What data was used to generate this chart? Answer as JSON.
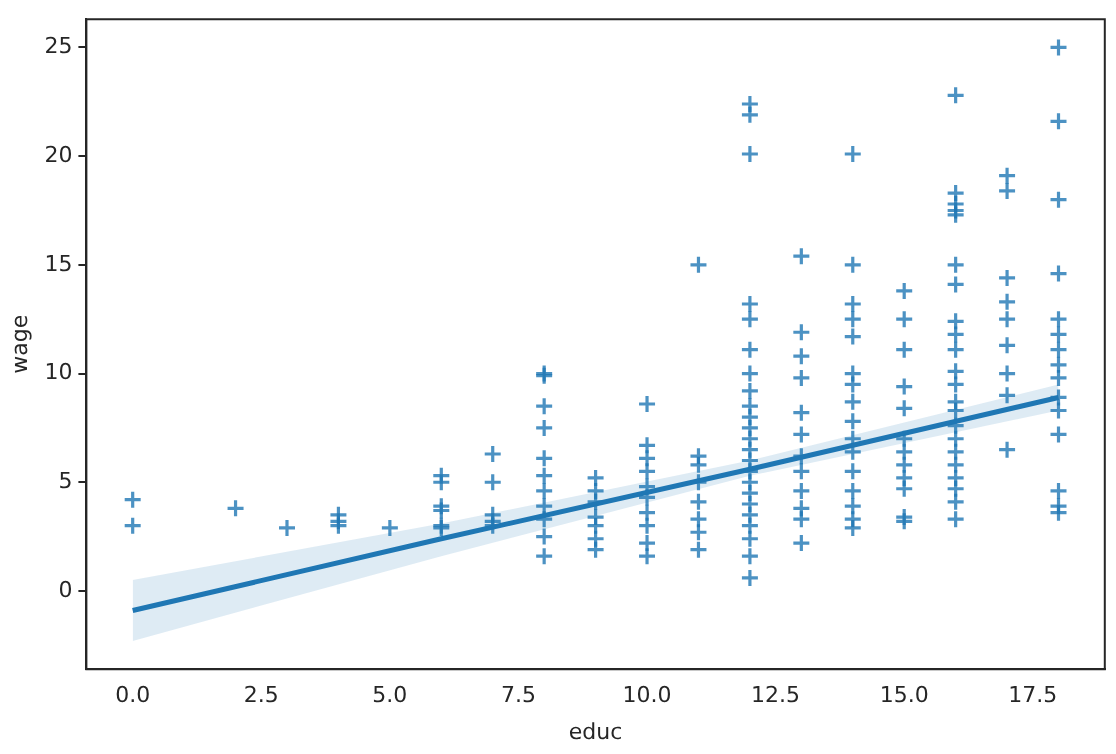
{
  "chart_data": {
    "type": "scatter",
    "xlabel": "educ",
    "ylabel": "wage",
    "xlim": [
      -0.9,
      18.9
    ],
    "ylim": [
      -3.6,
      26.3
    ],
    "xticks": [
      {
        "value": 0,
        "label": "0.0"
      },
      {
        "value": 2.5,
        "label": "2.5"
      },
      {
        "value": 5,
        "label": "5.0"
      },
      {
        "value": 7.5,
        "label": "7.5"
      },
      {
        "value": 10,
        "label": "10.0"
      },
      {
        "value": 12.5,
        "label": "12.5"
      },
      {
        "value": 15,
        "label": "15.0"
      },
      {
        "value": 17.5,
        "label": "17.5"
      }
    ],
    "yticks": [
      0,
      5,
      10,
      15,
      20,
      25
    ],
    "grid": false,
    "legend": false,
    "series": [
      {
        "marker": "cross",
        "color": "#1f77b4",
        "x": [
          0,
          0,
          2,
          3,
          4,
          4,
          4,
          5,
          6,
          6,
          6,
          6,
          6,
          6,
          7,
          7,
          7,
          7,
          7,
          8,
          8,
          8,
          8,
          8,
          8,
          8,
          8,
          8,
          8,
          8,
          9,
          9,
          9,
          9,
          9,
          9,
          9,
          10,
          10,
          10,
          10,
          10,
          10,
          10,
          10,
          10,
          10,
          11,
          11,
          11,
          11,
          11,
          11,
          11,
          11,
          12,
          12,
          12,
          12,
          12,
          12,
          12,
          12,
          12,
          12,
          12,
          12,
          12,
          12,
          12,
          12,
          12,
          12,
          12,
          12,
          12,
          12,
          12,
          13,
          13,
          13,
          13,
          13,
          13,
          13,
          13,
          13,
          13,
          13,
          13,
          14,
          14,
          14,
          14,
          14,
          14,
          14,
          14,
          14,
          14,
          14,
          14,
          14,
          14,
          14,
          14,
          15,
          15,
          15,
          15,
          15,
          15,
          15,
          15,
          15,
          15,
          15,
          15,
          16,
          16,
          16,
          16,
          16,
          16,
          16,
          16,
          16,
          16,
          16,
          16,
          16,
          16,
          16,
          16,
          16,
          16,
          16,
          16,
          16,
          16,
          17,
          17,
          17,
          17,
          17,
          17,
          17,
          17,
          17,
          18,
          18,
          18,
          18,
          18,
          18,
          18,
          18,
          18,
          18,
          18,
          18,
          18,
          18,
          18
        ],
        "values": [
          4.2,
          3.0,
          3.8,
          2.9,
          3.5,
          3.2,
          3.0,
          2.9,
          5.3,
          5.0,
          3.9,
          3.7,
          3.0,
          2.9,
          6.3,
          5.0,
          3.5,
          3.2,
          3.0,
          10.0,
          9.9,
          8.5,
          7.5,
          6.1,
          5.3,
          4.6,
          3.9,
          3.3,
          2.5,
          1.6,
          5.2,
          4.6,
          4.1,
          3.4,
          3.0,
          2.4,
          1.9,
          8.6,
          6.7,
          6.1,
          5.5,
          4.8,
          4.3,
          3.6,
          3.0,
          2.2,
          1.6,
          15.0,
          6.2,
          5.8,
          5.0,
          4.1,
          3.3,
          2.7,
          1.9,
          22.4,
          21.9,
          20.1,
          13.2,
          12.5,
          11.1,
          10.0,
          9.2,
          8.5,
          8.0,
          7.5,
          7.0,
          6.5,
          6.0,
          5.5,
          5.0,
          4.5,
          4.0,
          3.5,
          3.0,
          2.4,
          1.6,
          0.6,
          15.4,
          11.9,
          10.8,
          9.8,
          8.2,
          7.2,
          6.2,
          5.5,
          4.6,
          3.8,
          3.3,
          2.2,
          20.1,
          15.0,
          13.2,
          12.5,
          11.7,
          10.0,
          9.5,
          8.7,
          7.8,
          7.0,
          6.4,
          5.5,
          4.6,
          3.9,
          3.3,
          2.9,
          13.8,
          12.5,
          11.1,
          9.4,
          8.4,
          7.0,
          6.4,
          5.8,
          5.2,
          4.7,
          3.4,
          3.2,
          22.8,
          18.3,
          17.8,
          17.5,
          17.3,
          15.0,
          14.1,
          12.4,
          11.8,
          11.1,
          10.1,
          9.5,
          8.7,
          8.3,
          7.6,
          7.0,
          6.4,
          5.8,
          5.2,
          4.7,
          4.1,
          3.3,
          19.1,
          18.4,
          14.4,
          13.3,
          12.5,
          11.3,
          10.0,
          9.0,
          6.5,
          25.0,
          21.6,
          18.0,
          14.6,
          12.5,
          11.8,
          11.1,
          10.4,
          9.8,
          8.9,
          8.3,
          7.2,
          4.6,
          3.9,
          3.6
        ]
      },
      {
        "type": "line",
        "color": "#1f77b4",
        "x": [
          0,
          6,
          12,
          18
        ],
        "values": [
          -0.9,
          2.4,
          5.6,
          8.9
        ],
        "lower": [
          -2.3,
          1.6,
          5.3,
          8.3
        ],
        "upper": [
          0.5,
          3.1,
          6.0,
          9.5
        ]
      }
    ]
  }
}
